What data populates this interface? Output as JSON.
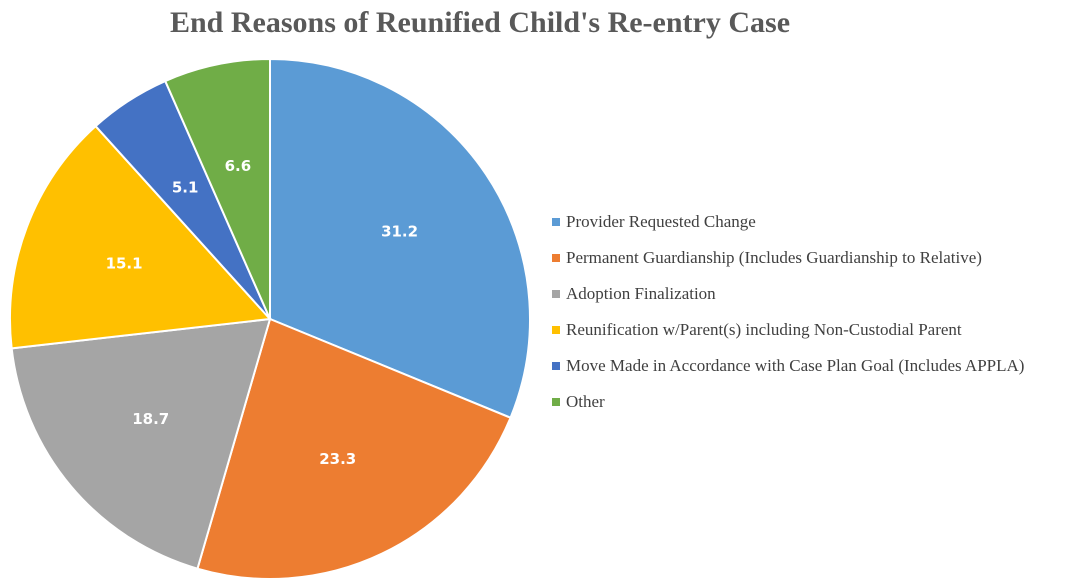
{
  "chart_data": {
    "type": "pie",
    "title": "End Reasons of Reunified Child's Re-entry Case",
    "categories": [
      "Provider Requested Change",
      "Permanent Guardianship (Includes Guardianship to Relative)",
      "Adoption Finalization",
      "Reunification w/Parent(s) including Non-Custodial Parent",
      "Move Made in Accordance with Case Plan Goal (Includes APPLA)",
      "Other"
    ],
    "values": [
      31.2,
      23.3,
      18.7,
      15.1,
      5.1,
      6.6
    ],
    "data_labels": [
      "31.2",
      "23.3",
      "18.7",
      "15.1",
      "5.1",
      "6.6"
    ],
    "colors": [
      "#5B9BD5",
      "#ED7D31",
      "#A5A5A5",
      "#FFC000",
      "#4472C4",
      "#70AD47"
    ],
    "legend_position": "right"
  }
}
